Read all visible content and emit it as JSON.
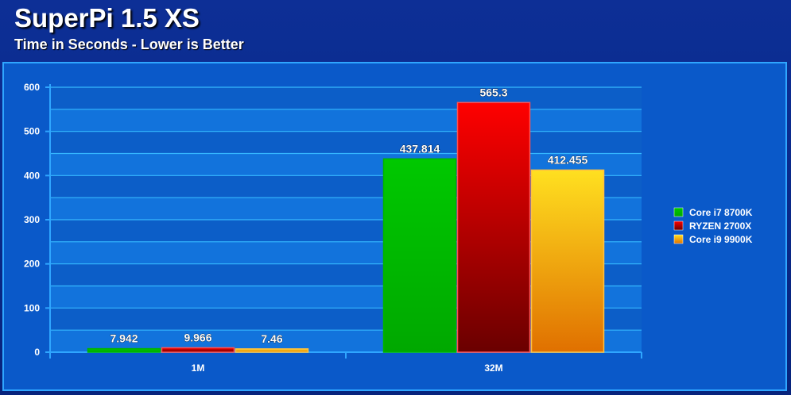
{
  "header": {
    "title": "SuperPi 1.5 XS",
    "subtitle": "Time in Seconds - Lower is Better"
  },
  "chart_data": {
    "type": "bar",
    "categories": [
      "1M",
      "32M"
    ],
    "series": [
      {
        "name": "Core i7 8700K",
        "values": [
          7.942,
          437.814
        ],
        "labels": [
          "7.942",
          "437.814"
        ],
        "color": "#00b400"
      },
      {
        "name": "RYZEN 2700X",
        "values": [
          9.966,
          565.3
        ],
        "labels": [
          "9.966",
          "565.3"
        ],
        "color": "#e00000"
      },
      {
        "name": "Core i9 9900K",
        "values": [
          7.46,
          412.455
        ],
        "labels": [
          "7.46",
          "412.455"
        ],
        "color": "#f5a800"
      }
    ],
    "yticks": [
      "0",
      "100",
      "200",
      "300",
      "400",
      "500",
      "600"
    ],
    "ylim": [
      0,
      600
    ],
    "grid": true,
    "legend_position": "right"
  },
  "colors": {
    "background": "#0a2a8e",
    "plot_area": "#0a59c9",
    "border": "#2fa6ff"
  }
}
